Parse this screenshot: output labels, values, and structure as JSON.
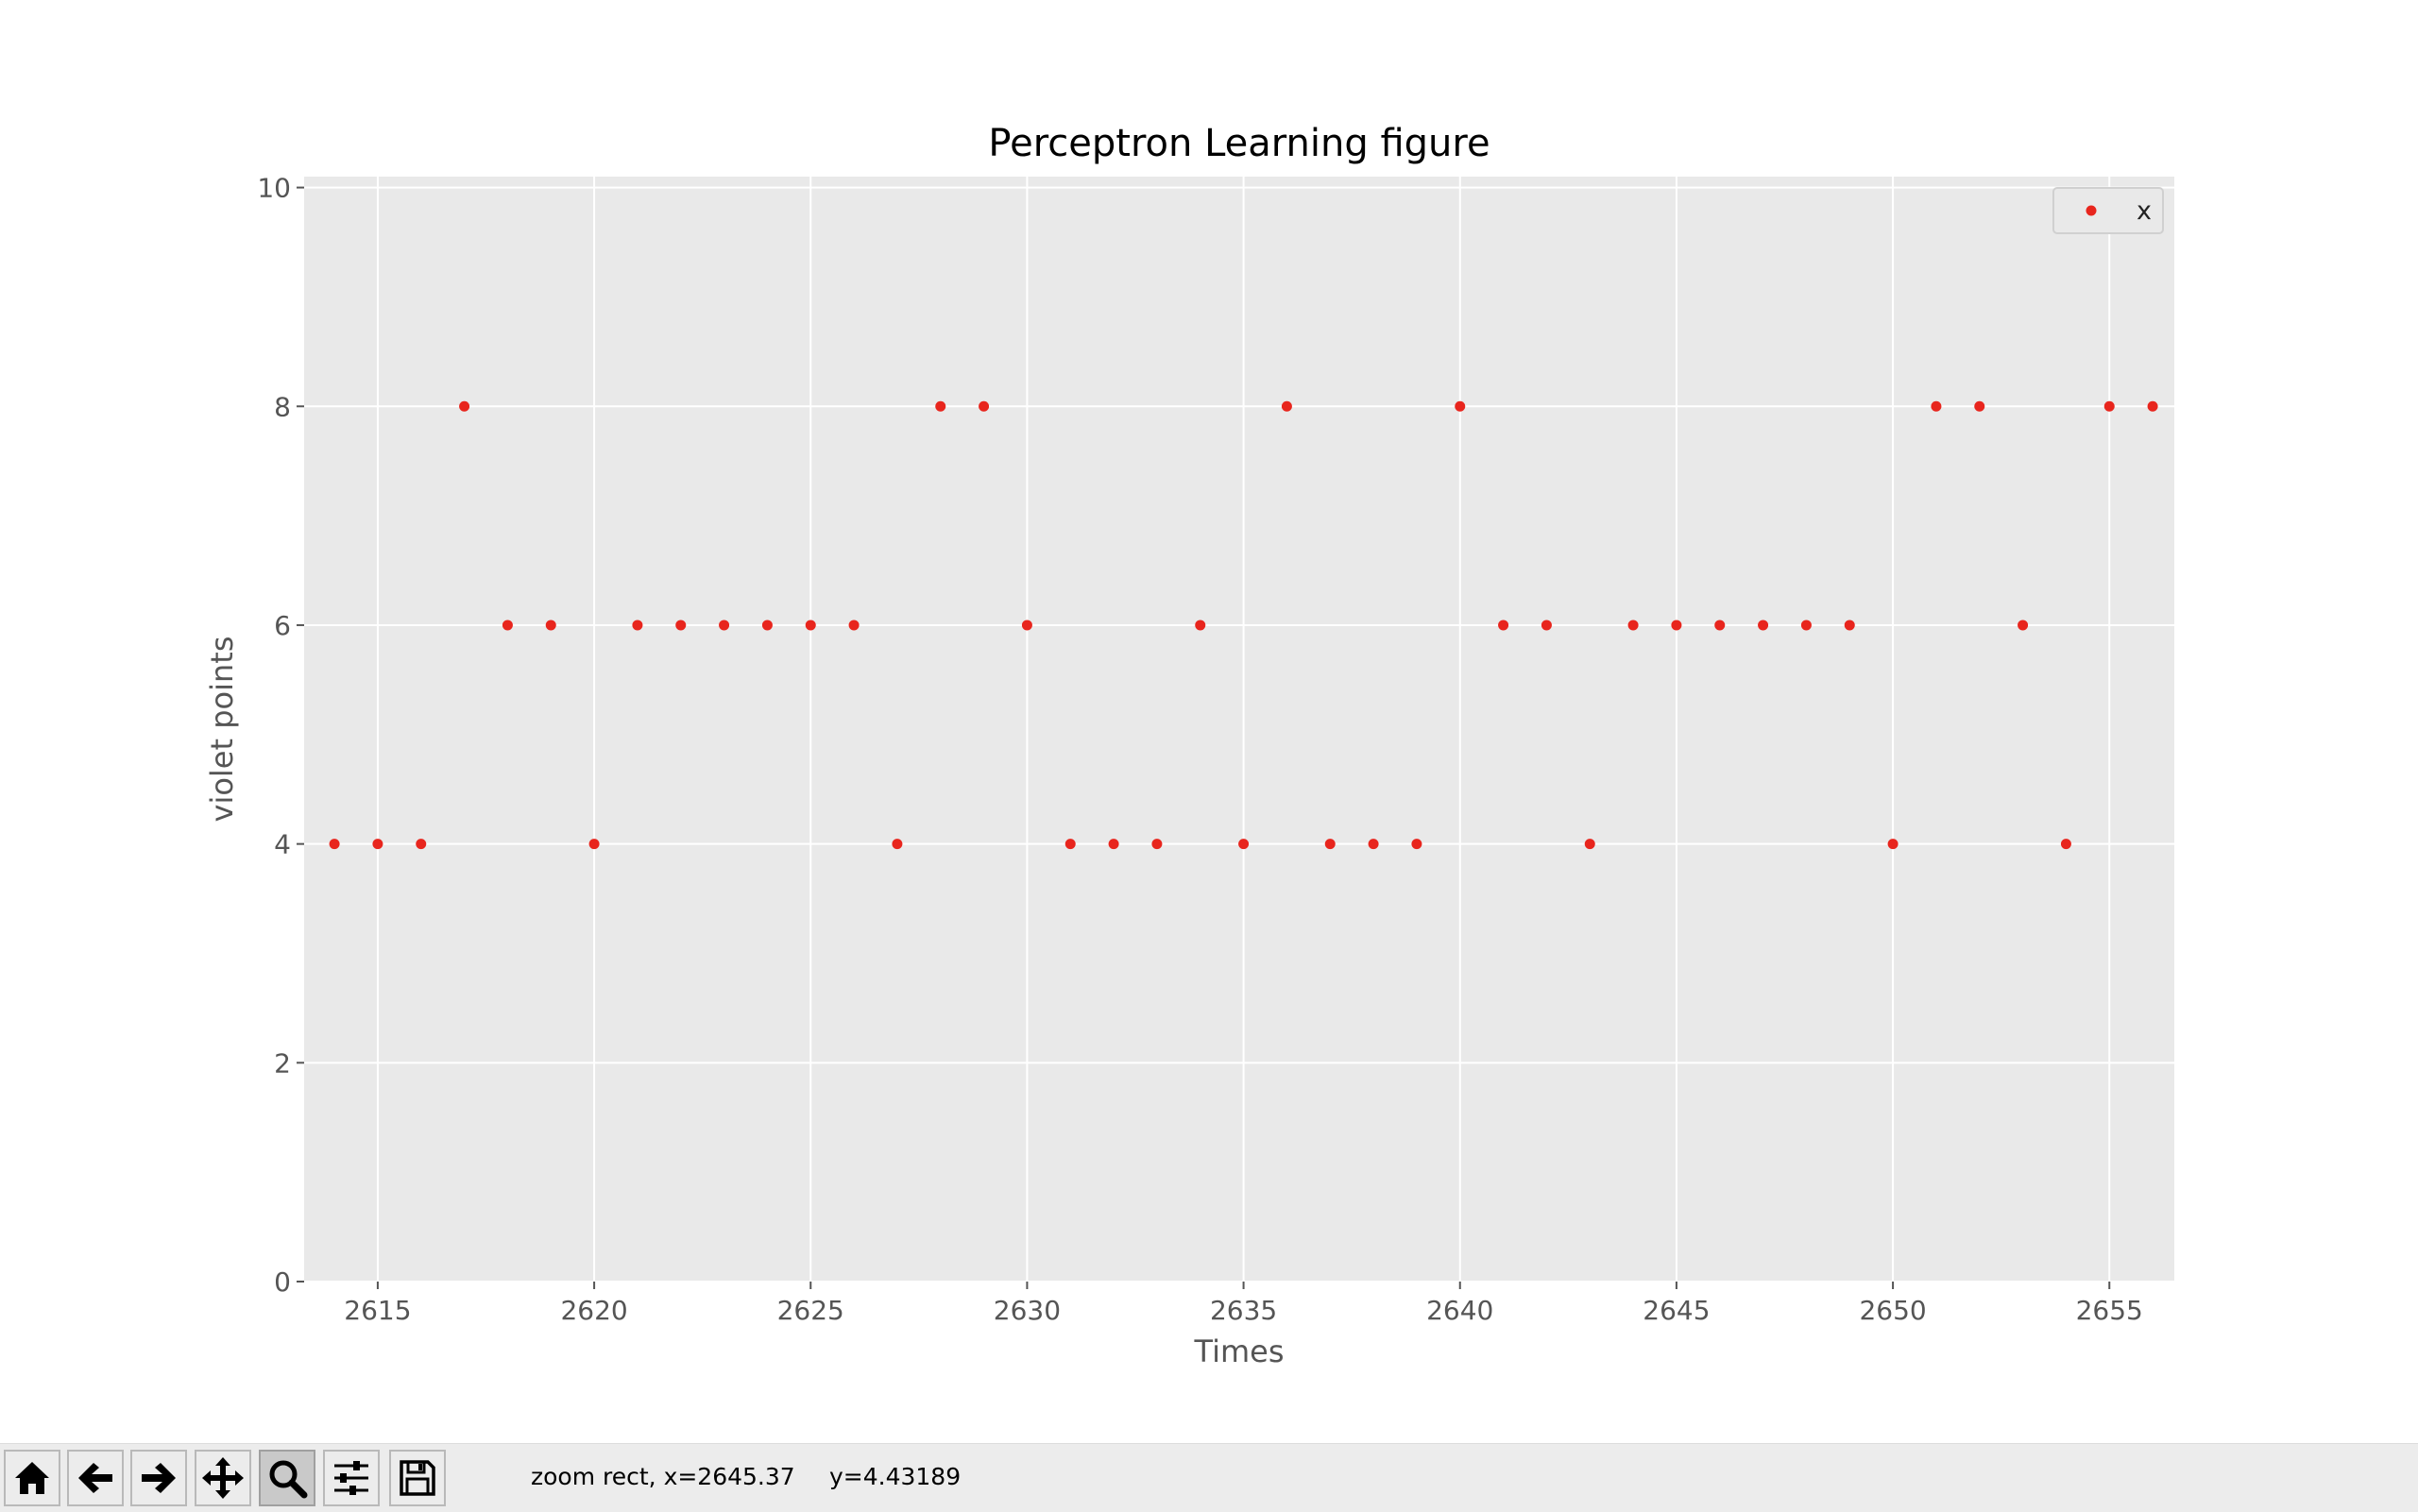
{
  "chart_data": {
    "type": "scatter",
    "title": "Perceptron Learning figure",
    "xlabel": "Times",
    "ylabel": "violet points",
    "xlim": [
      2613.3,
      2656.5
    ],
    "ylim": [
      0,
      10.1
    ],
    "xticks": [
      2615,
      2620,
      2625,
      2630,
      2635,
      2640,
      2645,
      2650,
      2655
    ],
    "yticks": [
      0,
      2,
      4,
      6,
      8,
      10
    ],
    "grid": true,
    "legend_position": "top-right",
    "series": [
      {
        "name": "x",
        "color": "#e8251d",
        "x": [
          2614,
          2615,
          2616,
          2617,
          2618,
          2619,
          2620,
          2621,
          2622,
          2623,
          2624,
          2625,
          2626,
          2627,
          2628,
          2629,
          2630,
          2631,
          2632,
          2633,
          2634,
          2635,
          2636,
          2637,
          2638,
          2639,
          2640,
          2641,
          2642,
          2643,
          2644,
          2645,
          2646,
          2647,
          2648,
          2649,
          2650,
          2651,
          2652,
          2653,
          2654,
          2655,
          2656
        ],
        "y": [
          4,
          4,
          4,
          8,
          6,
          6,
          4,
          6,
          6,
          6,
          6,
          6,
          6,
          4,
          8,
          8,
          6,
          4,
          4,
          4,
          6,
          4,
          8,
          4,
          4,
          4,
          8,
          6,
          6,
          4,
          6,
          6,
          6,
          6,
          6,
          6,
          4,
          8,
          8,
          6,
          4,
          8,
          8
        ]
      }
    ]
  },
  "colors": {
    "axes_bg": "#e9e9e9",
    "grid": "#ffffff",
    "tick_text": "#555555",
    "label_text": "#555555",
    "title_text": "#000000"
  },
  "toolbar": {
    "buttons": [
      {
        "icon": "home-icon",
        "name": "home-button",
        "active": false
      },
      {
        "icon": "arrow-left-icon",
        "name": "back-button",
        "active": false
      },
      {
        "icon": "arrow-right-icon",
        "name": "forward-button",
        "active": false
      },
      {
        "icon": "move-icon",
        "name": "pan-button",
        "active": false
      },
      {
        "icon": "magnifier-icon",
        "name": "zoom-button",
        "active": true
      },
      {
        "icon": "sliders-icon",
        "name": "configure-subplots-button",
        "active": false
      },
      {
        "icon": "floppy-disk-icon",
        "name": "save-button",
        "active": false
      }
    ]
  },
  "status": {
    "mode_text": "zoom rect, x=2645.37",
    "y_text": "y=4.43189"
  }
}
